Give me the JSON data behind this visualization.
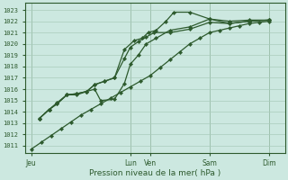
{
  "bg_color": "#cce8e0",
  "grid_color": "#aaccbb",
  "line_color": "#2d5a2d",
  "marker_color": "#2d5a2d",
  "title": "Pression niveau de la mer( hPa )",
  "ylabel_values": [
    1011,
    1012,
    1013,
    1014,
    1015,
    1016,
    1017,
    1018,
    1019,
    1020,
    1021,
    1022,
    1023
  ],
  "ylim": [
    1010.4,
    1023.6
  ],
  "xtick_labels": [
    "Jeu",
    "Lun",
    "Ven",
    "Sam",
    "Dim"
  ],
  "xtick_positions": [
    0,
    5,
    6,
    9,
    12
  ],
  "xlim": [
    -0.3,
    12.8
  ],
  "line1_x": [
    0.0,
    0.5,
    1.0,
    1.5,
    2.0,
    2.5,
    3.0,
    3.5,
    4.0,
    4.5,
    5.0,
    5.5,
    6.0,
    6.5,
    7.0,
    7.5,
    8.0,
    8.5,
    9.0,
    9.5,
    10.0,
    10.5,
    11.0,
    11.5,
    12.0
  ],
  "line1_y": [
    1010.7,
    1011.3,
    1011.9,
    1012.5,
    1013.1,
    1013.7,
    1014.2,
    1014.7,
    1015.2,
    1015.7,
    1016.2,
    1016.7,
    1017.2,
    1017.9,
    1018.6,
    1019.3,
    1020.0,
    1020.5,
    1021.0,
    1021.2,
    1021.4,
    1021.6,
    1021.8,
    1021.9,
    1022.0
  ],
  "line2_x": [
    0.4,
    0.9,
    1.3,
    1.8,
    2.3,
    2.8,
    3.2,
    3.7,
    4.2,
    4.7,
    5.2,
    5.6,
    5.9,
    6.3,
    6.8,
    7.2,
    8.0,
    9.0,
    10.0,
    11.0,
    12.0
  ],
  "line2_y": [
    1013.4,
    1014.2,
    1014.7,
    1015.5,
    1015.6,
    1015.8,
    1016.4,
    1016.7,
    1017.0,
    1019.5,
    1020.3,
    1020.5,
    1021.0,
    1021.2,
    1022.0,
    1022.8,
    1022.8,
    1022.2,
    1021.8,
    1022.0,
    1022.1
  ],
  "line3_x": [
    0.4,
    0.9,
    1.3,
    1.8,
    2.3,
    2.8,
    3.2,
    3.7,
    4.2,
    4.7,
    5.0,
    5.4,
    5.8,
    6.2,
    7.0,
    8.0,
    9.0,
    10.0,
    11.0,
    12.0
  ],
  "line3_y": [
    1013.4,
    1014.2,
    1014.7,
    1015.5,
    1015.6,
    1015.8,
    1016.4,
    1016.7,
    1017.0,
    1018.7,
    1019.7,
    1020.2,
    1020.6,
    1021.0,
    1021.0,
    1021.3,
    1021.9,
    1021.8,
    1022.0,
    1022.1
  ],
  "line4_x": [
    0.4,
    0.9,
    1.3,
    1.8,
    2.3,
    2.8,
    3.2,
    3.5,
    4.2,
    4.7,
    5.0,
    5.4,
    5.8,
    6.3,
    7.0,
    8.0,
    9.0,
    10.0,
    11.0,
    12.0
  ],
  "line4_y": [
    1013.4,
    1014.2,
    1014.8,
    1015.5,
    1015.5,
    1015.8,
    1016.0,
    1015.0,
    1015.1,
    1016.5,
    1018.2,
    1019.0,
    1020.0,
    1020.5,
    1021.2,
    1021.5,
    1022.2,
    1022.0,
    1022.1,
    1022.1
  ]
}
